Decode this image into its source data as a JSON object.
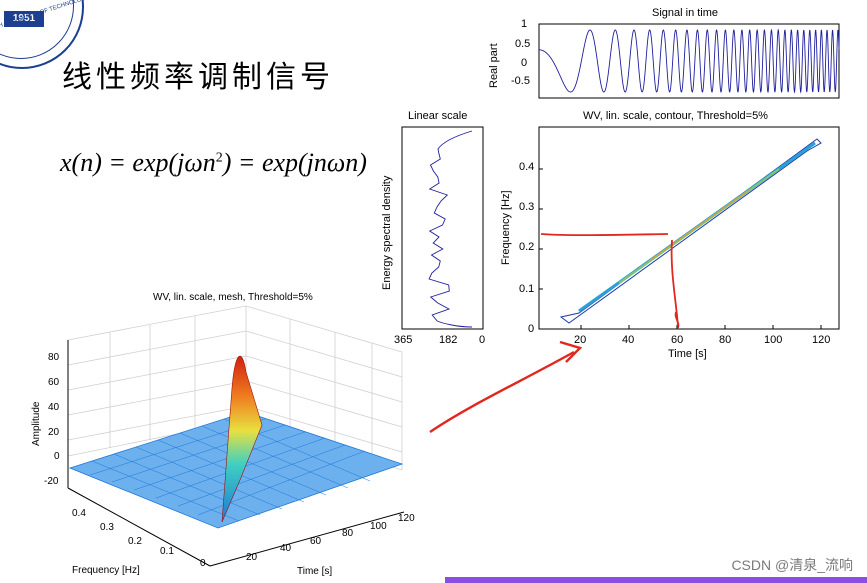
{
  "logo": {
    "year": "1951",
    "arc_text": "SOUTH UNIVERSITY OF TECHNOLOGY"
  },
  "slide": {
    "title": "线性频率调制信号",
    "formula_lhs": "x(n) = exp(jωn",
    "formula_sup": "2",
    "formula_rhs": ") = exp(jnωn)"
  },
  "signal_plot": {
    "title": "Signal in time",
    "ylabel": "Real part",
    "yticks": [
      "1",
      "0.5",
      "0",
      "-0.5"
    ]
  },
  "spectrum_plot": {
    "title": "Linear scale",
    "ylabel": "Energy spectral density",
    "xticks": [
      "365",
      "182",
      "0"
    ]
  },
  "contour_plot": {
    "title": "WV, lin. scale, contour, Threshold=5%",
    "xlabel": "Time [s]",
    "ylabel": "Frequency [Hz]",
    "xticks": [
      "20",
      "40",
      "60",
      "80",
      "100",
      "120"
    ],
    "yticks": [
      "0.4",
      "0.3",
      "0.2",
      "0.1",
      "0"
    ]
  },
  "mesh_plot": {
    "title": "WV, lin. scale, mesh, Threshold=5%",
    "zlabel": "Amplitude",
    "zticks": [
      "80",
      "60",
      "40",
      "20",
      "0",
      "-20"
    ],
    "flabel": "Frequency [Hz]",
    "fticks": [
      "0.4",
      "0.3",
      "0.2",
      "0.1",
      "0"
    ],
    "tlabel": "Time [s]",
    "tticks": [
      "20",
      "40",
      "60",
      "80",
      "100",
      "120"
    ]
  },
  "watermark": "CSDN @清泉_流响",
  "colors": {
    "signal_line": "#1f1f9e",
    "annotation": "#e0281e",
    "mesh_blue": "#1e78d8",
    "slide_accent": "#8a4fe0"
  }
}
